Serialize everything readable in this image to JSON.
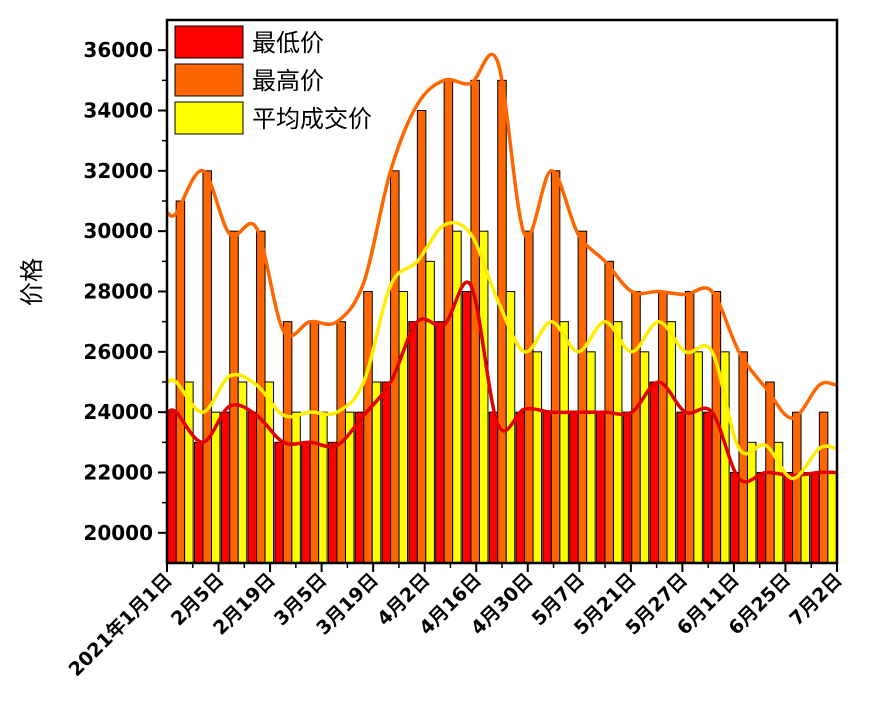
{
  "chart_data": {
    "type": "bar",
    "ylabel": "价格",
    "xlabel": "",
    "title": "",
    "ylim": [
      19000,
      37000
    ],
    "yticks": [
      20000,
      22000,
      24000,
      26000,
      28000,
      30000,
      32000,
      34000,
      36000
    ],
    "x_tick_labels": [
      "2021年1月1日",
      "2月5日",
      "2月19日",
      "3月5日",
      "3月19日",
      "4月2日",
      "4月16日",
      "4月30日",
      "5月7日",
      "5月21日",
      "5月27日",
      "6月11日",
      "6月25日",
      "7月2日"
    ],
    "legend_position": "top-left",
    "series": [
      {
        "name": "最低价",
        "color": "#ff0000",
        "values": [
          24000,
          23000,
          24000,
          24000,
          23000,
          23000,
          23000,
          24000,
          25000,
          27000,
          27000,
          28000,
          24000,
          24000,
          24000,
          24000,
          24000,
          24000,
          25000,
          24000,
          24000,
          22000,
          22000,
          22000,
          22000
        ]
      },
      {
        "name": "最高价",
        "color": "#ff6600",
        "values": [
          31000,
          32000,
          30000,
          30000,
          27000,
          27000,
          27000,
          28000,
          32000,
          34000,
          35000,
          35000,
          35000,
          30000,
          32000,
          30000,
          29000,
          28000,
          28000,
          28000,
          28000,
          26000,
          25000,
          24000,
          24000
        ]
      },
      {
        "name": "平均成交价",
        "color": "#ffff00",
        "values": [
          25000,
          24000,
          25000,
          25000,
          24000,
          24000,
          24000,
          25000,
          28000,
          29000,
          30000,
          30000,
          28000,
          26000,
          27000,
          26000,
          27000,
          26000,
          27000,
          26000,
          26000,
          23000,
          23000,
          22000,
          22000
        ]
      }
    ],
    "curves": [
      {
        "series": "最低价",
        "color": "#e30000",
        "values": [
          24000,
          23000,
          24200,
          23900,
          23000,
          23000,
          22900,
          23900,
          25000,
          27000,
          26900,
          28200,
          23600,
          24100,
          24000,
          24000,
          24000,
          24000,
          25000,
          24000,
          24000,
          21800,
          22000,
          21900,
          22000
        ]
      },
      {
        "series": "最高价",
        "color": "#ff6600",
        "values": [
          30600,
          32000,
          29900,
          30100,
          26700,
          27000,
          27000,
          28300,
          32000,
          34200,
          35000,
          34900,
          35600,
          29900,
          32000,
          29900,
          29000,
          28000,
          28000,
          27900,
          28000,
          26000,
          24800,
          23800,
          24900
        ]
      },
      {
        "series": "平均成交价",
        "color": "#ffee00",
        "values": [
          25000,
          24000,
          25200,
          24900,
          23900,
          24000,
          24000,
          25000,
          28200,
          29000,
          30200,
          29900,
          27700,
          26000,
          27000,
          26000,
          27000,
          26000,
          27000,
          26000,
          26000,
          22800,
          22900,
          21800,
          22800
        ]
      }
    ]
  }
}
